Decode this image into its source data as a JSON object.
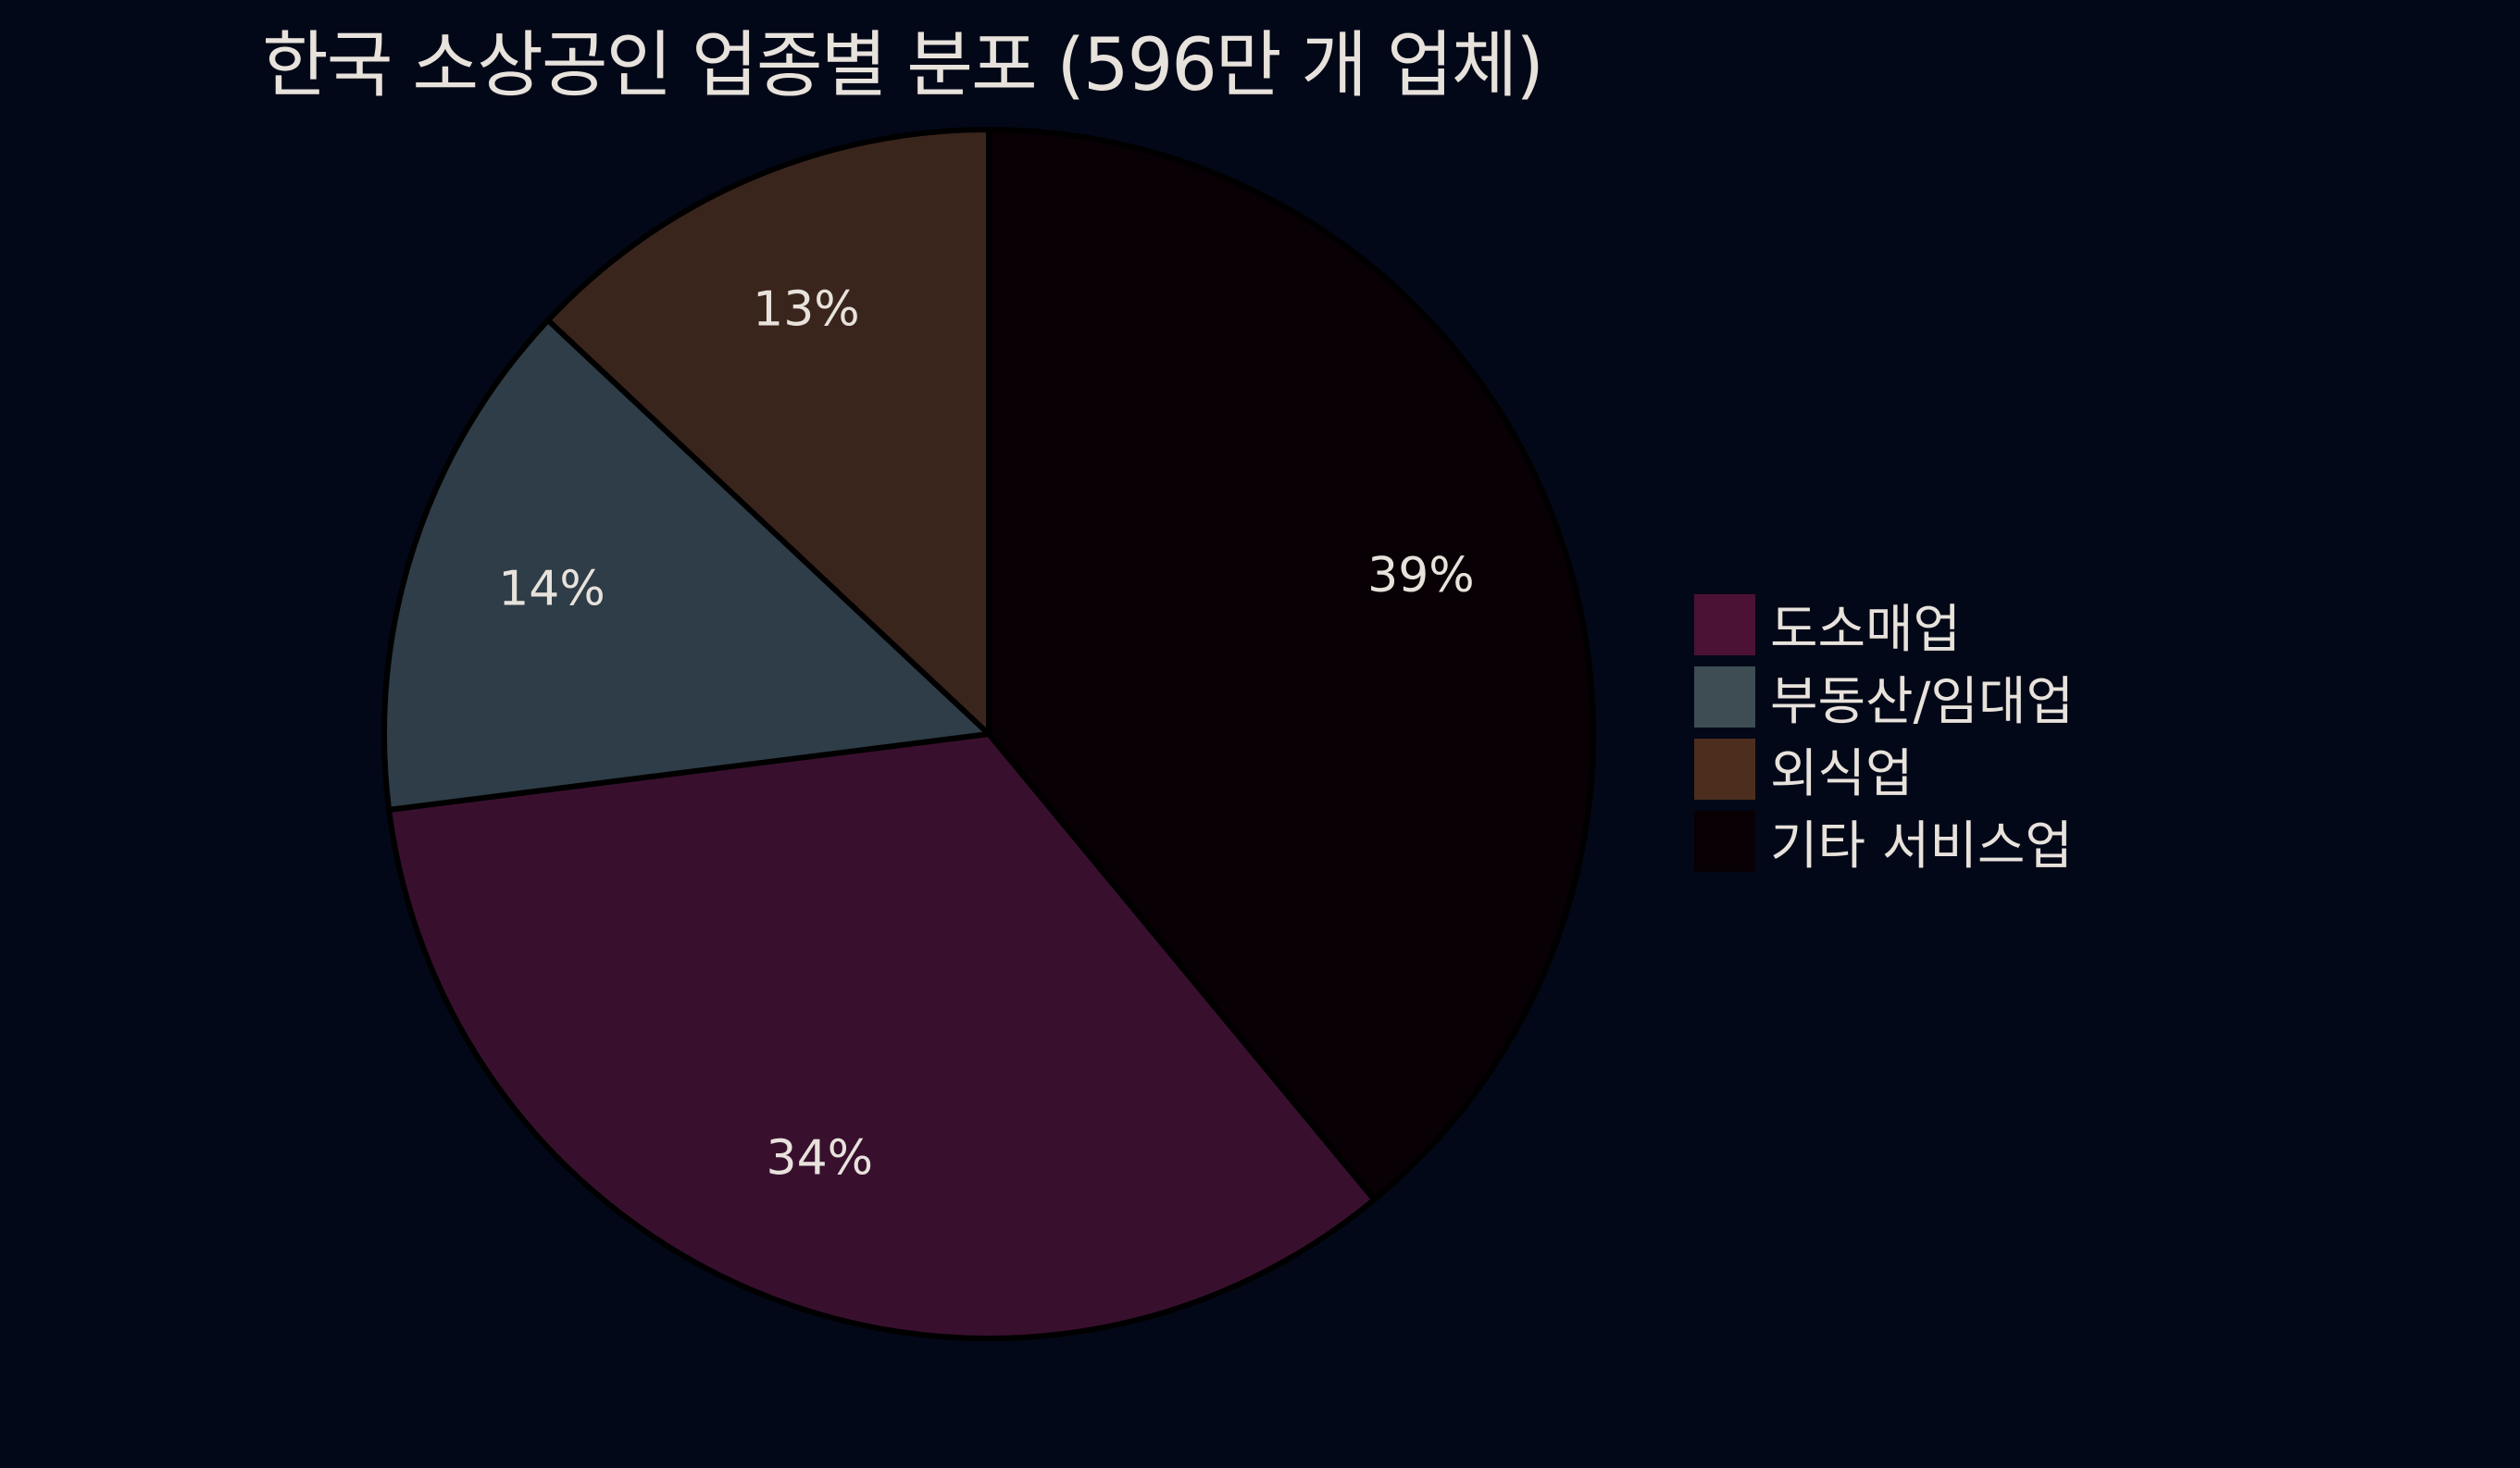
{
  "chart_data": {
    "type": "pie",
    "title": "한국 소상공인 업종별 분포 (596만 개 업체)",
    "categories": [
      "도소매업",
      "부동산/임대업",
      "외식업",
      "기타 서비스업"
    ],
    "values": [
      34,
      14,
      13,
      39
    ],
    "labels": [
      "34%",
      "14%",
      "13%",
      "39%"
    ],
    "slice_colors": [
      "#38102e",
      "#2e3d47",
      "#3a251d",
      "#080004"
    ],
    "legend_colors": [
      "#4b1235",
      "#3d4d53",
      "#4d2e1e",
      "#080004"
    ],
    "slice_order_clockwise_from_top": [
      "기타 서비스업",
      "도소매업",
      "부동산/임대업",
      "외식업"
    ],
    "legend_position": "right",
    "background": "#020817"
  }
}
